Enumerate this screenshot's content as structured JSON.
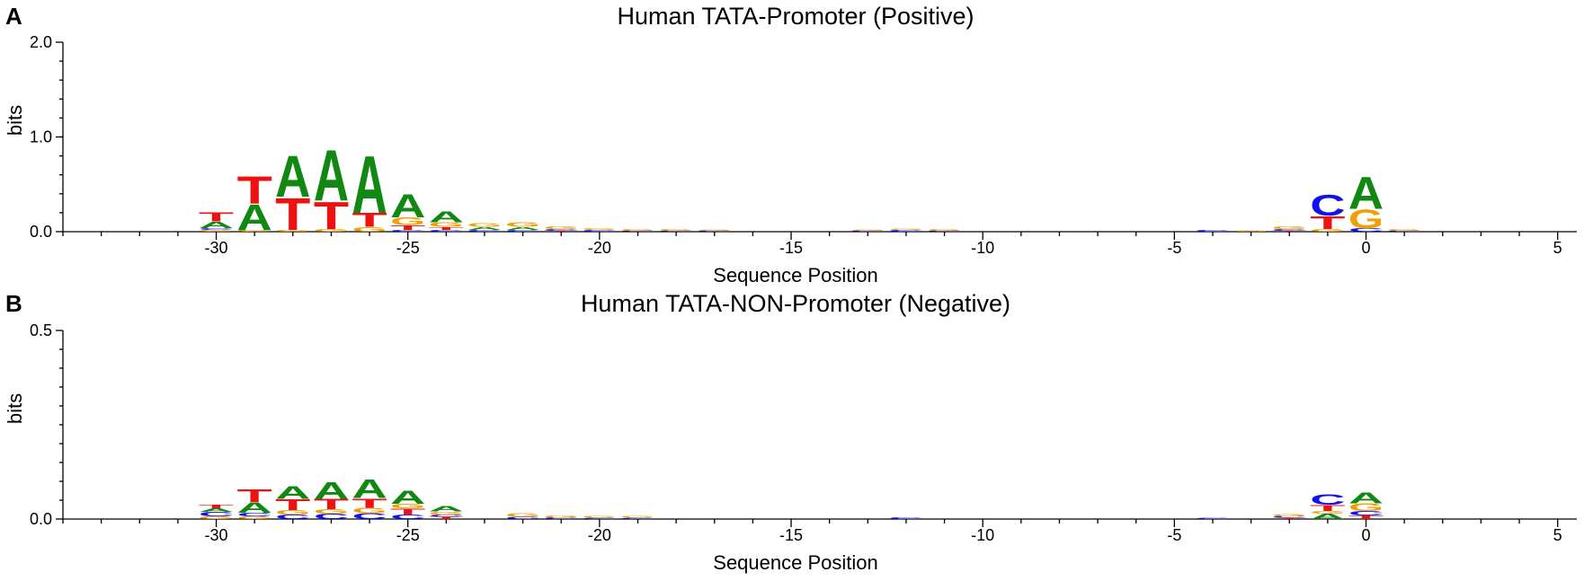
{
  "chart_data": [
    {
      "type": "sequence-logo",
      "panel_label": "A",
      "title": "Human TATA-Promoter (Positive)",
      "xlabel": "Sequence Position",
      "ylabel": "bits",
      "xlim": [
        -34,
        5.5
      ],
      "ylim": [
        0,
        2.0
      ],
      "x_ticks": [
        -30,
        -25,
        -20,
        -15,
        -10,
        -5,
        0,
        5
      ],
      "y_ticks": [
        0.0,
        1.0,
        2.0
      ],
      "y_tick_labels": [
        "0.0",
        "1.0",
        "2.0"
      ],
      "colors": {
        "A": "#118811",
        "C": "#1111ee",
        "G": "#f0a000",
        "T": "#ee1111"
      },
      "positions": [
        {
          "x": -30,
          "letters": [
            [
              "G",
              0.02
            ],
            [
              "C",
              0.02
            ],
            [
              "A",
              0.07
            ],
            [
              "T",
              0.1
            ]
          ]
        },
        {
          "x": -29,
          "letters": [
            [
              "G",
              0.02
            ],
            [
              "A",
              0.28
            ],
            [
              "T",
              0.3
            ]
          ]
        },
        {
          "x": -28,
          "letters": [
            [
              "G",
              0.02
            ],
            [
              "T",
              0.35
            ],
            [
              "A",
              0.45
            ]
          ]
        },
        {
          "x": -27,
          "letters": [
            [
              "G",
              0.03
            ],
            [
              "T",
              0.3
            ],
            [
              "A",
              0.55
            ]
          ]
        },
        {
          "x": -26,
          "letters": [
            [
              "G",
              0.05
            ],
            [
              "T",
              0.15
            ],
            [
              "A",
              0.62
            ]
          ]
        },
        {
          "x": -25,
          "letters": [
            [
              "C",
              0.02
            ],
            [
              "T",
              0.05
            ],
            [
              "G",
              0.08
            ],
            [
              "A",
              0.25
            ]
          ]
        },
        {
          "x": -24,
          "letters": [
            [
              "C",
              0.02
            ],
            [
              "T",
              0.03
            ],
            [
              "G",
              0.05
            ],
            [
              "A",
              0.12
            ]
          ]
        },
        {
          "x": -23,
          "letters": [
            [
              "C",
              0.02
            ],
            [
              "A",
              0.03
            ],
            [
              "G",
              0.04
            ]
          ]
        },
        {
          "x": -22,
          "letters": [
            [
              "C",
              0.02
            ],
            [
              "A",
              0.03
            ],
            [
              "G",
              0.05
            ]
          ]
        },
        {
          "x": -21,
          "letters": [
            [
              "T",
              0.01
            ],
            [
              "C",
              0.02
            ],
            [
              "G",
              0.03
            ]
          ]
        },
        {
          "x": -20,
          "letters": [
            [
              "C",
              0.02
            ],
            [
              "G",
              0.02
            ]
          ]
        },
        {
          "x": -19,
          "letters": [
            [
              "C",
              0.01
            ],
            [
              "G",
              0.02
            ]
          ]
        },
        {
          "x": -18,
          "letters": [
            [
              "C",
              0.01
            ],
            [
              "G",
              0.02
            ]
          ]
        },
        {
          "x": -17,
          "letters": [
            [
              "C",
              0.01
            ],
            [
              "G",
              0.01
            ]
          ]
        },
        {
          "x": -13,
          "letters": [
            [
              "C",
              0.01
            ],
            [
              "G",
              0.01
            ]
          ]
        },
        {
          "x": -12,
          "letters": [
            [
              "C",
              0.02
            ],
            [
              "G",
              0.01
            ]
          ]
        },
        {
          "x": -11,
          "letters": [
            [
              "C",
              0.01
            ],
            [
              "G",
              0.02
            ]
          ]
        },
        {
          "x": -4,
          "letters": [
            [
              "C",
              0.02
            ]
          ]
        },
        {
          "x": -3,
          "letters": [
            [
              "G",
              0.01
            ]
          ]
        },
        {
          "x": -2,
          "letters": [
            [
              "T",
              0.01
            ],
            [
              "C",
              0.02
            ],
            [
              "G",
              0.03
            ]
          ]
        },
        {
          "x": -1,
          "letters": [
            [
              "G",
              0.03
            ],
            [
              "T",
              0.14
            ],
            [
              "C",
              0.23
            ]
          ]
        },
        {
          "x": 0,
          "letters": [
            [
              "C",
              0.04
            ],
            [
              "G",
              0.2
            ],
            [
              "A",
              0.35
            ]
          ]
        },
        {
          "x": 1,
          "letters": [
            [
              "C",
              0.01
            ],
            [
              "G",
              0.02
            ]
          ]
        }
      ]
    },
    {
      "type": "sequence-logo",
      "panel_label": "B",
      "title": "Human TATA-NON-Promoter (Negative)",
      "xlabel": "Sequence Position",
      "ylabel": "bits",
      "xlim": [
        -34,
        5.5
      ],
      "ylim": [
        0,
        0.5
      ],
      "x_ticks": [
        -30,
        -25,
        -20,
        -15,
        -10,
        -5,
        0,
        5
      ],
      "y_ticks": [
        0.0,
        0.5
      ],
      "y_tick_labels": [
        "0.0",
        "0.5"
      ],
      "colors": {
        "A": "#118811",
        "C": "#1111ee",
        "G": "#f0a000",
        "T": "#ee1111"
      },
      "positions": [
        {
          "x": -30,
          "letters": [
            [
              "G",
              0.007
            ],
            [
              "C",
              0.012
            ],
            [
              "A",
              0.01
            ],
            [
              "T",
              0.01
            ]
          ]
        },
        {
          "x": -29,
          "letters": [
            [
              "G",
              0.007
            ],
            [
              "C",
              0.01
            ],
            [
              "A",
              0.028
            ],
            [
              "T",
              0.035
            ]
          ]
        },
        {
          "x": -28,
          "letters": [
            [
              "C",
              0.012
            ],
            [
              "G",
              0.012
            ],
            [
              "T",
              0.03
            ],
            [
              "A",
              0.035
            ]
          ]
        },
        {
          "x": -27,
          "letters": [
            [
              "C",
              0.014
            ],
            [
              "G",
              0.012
            ],
            [
              "T",
              0.028
            ],
            [
              "A",
              0.046
            ]
          ]
        },
        {
          "x": -26,
          "letters": [
            [
              "C",
              0.016
            ],
            [
              "G",
              0.014
            ],
            [
              "T",
              0.026
            ],
            [
              "A",
              0.05
            ]
          ]
        },
        {
          "x": -25,
          "letters": [
            [
              "C",
              0.012
            ],
            [
              "T",
              0.016
            ],
            [
              "G",
              0.012
            ],
            [
              "A",
              0.036
            ]
          ]
        },
        {
          "x": -24,
          "letters": [
            [
              "T",
              0.006
            ],
            [
              "C",
              0.006
            ],
            [
              "G",
              0.008
            ],
            [
              "A",
              0.014
            ]
          ]
        },
        {
          "x": -22,
          "letters": [
            [
              "C",
              0.006
            ],
            [
              "G",
              0.01
            ]
          ]
        },
        {
          "x": -21,
          "letters": [
            [
              "C",
              0.004
            ],
            [
              "G",
              0.006
            ]
          ]
        },
        {
          "x": -20,
          "letters": [
            [
              "C",
              0.003
            ],
            [
              "G",
              0.005
            ]
          ]
        },
        {
          "x": -19,
          "letters": [
            [
              "C",
              0.003
            ],
            [
              "G",
              0.005
            ]
          ]
        },
        {
          "x": -12,
          "letters": [
            [
              "C",
              0.004
            ]
          ]
        },
        {
          "x": -4,
          "letters": [
            [
              "C",
              0.003
            ]
          ]
        },
        {
          "x": -2,
          "letters": [
            [
              "T",
              0.003
            ],
            [
              "C",
              0.004
            ],
            [
              "G",
              0.006
            ]
          ]
        },
        {
          "x": -1,
          "letters": [
            [
              "A",
              0.014
            ],
            [
              "G",
              0.008
            ],
            [
              "T",
              0.016
            ],
            [
              "C",
              0.028
            ]
          ]
        },
        {
          "x": 0,
          "letters": [
            [
              "T",
              0.01
            ],
            [
              "C",
              0.012
            ],
            [
              "G",
              0.02
            ],
            [
              "A",
              0.03
            ]
          ]
        }
      ]
    }
  ]
}
